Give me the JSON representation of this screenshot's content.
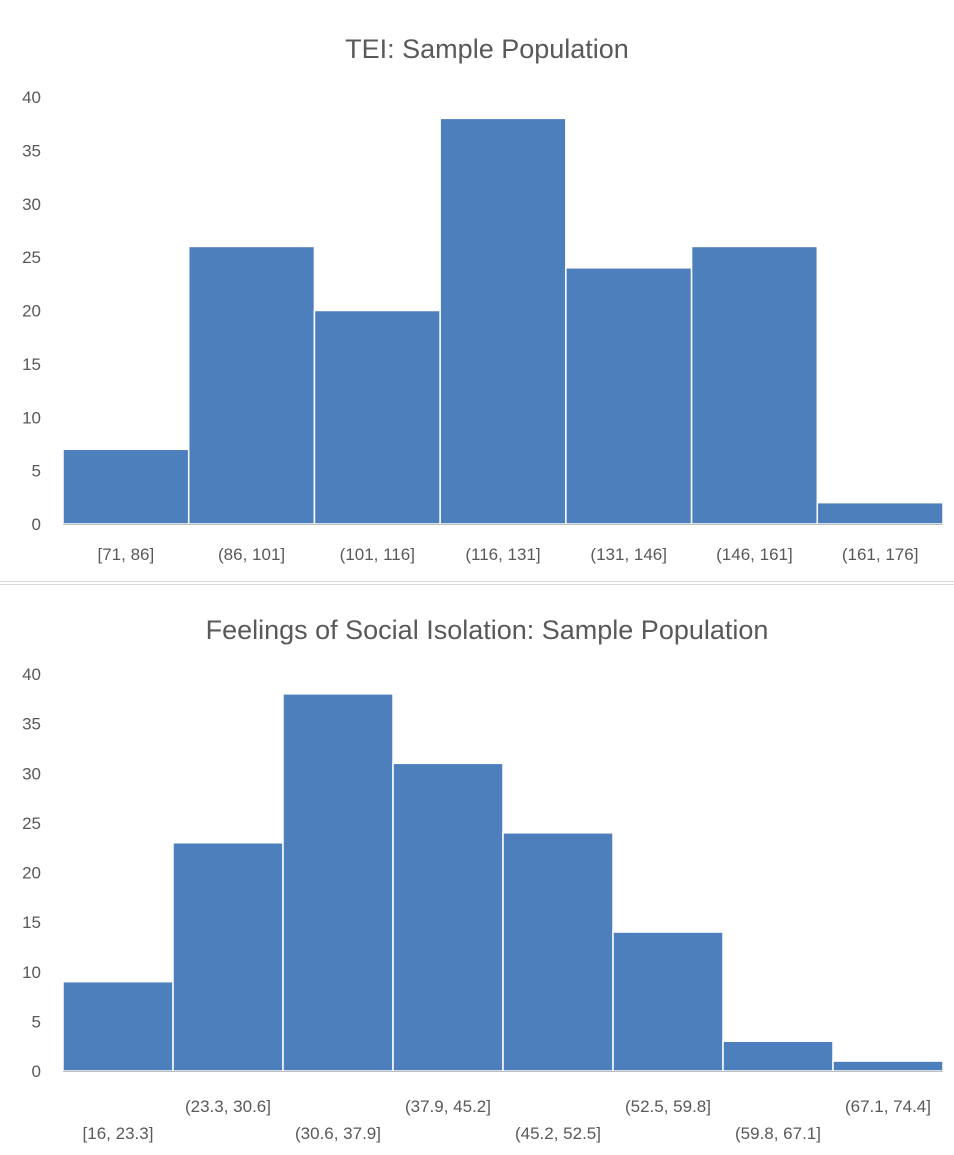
{
  "chart_data": [
    {
      "type": "bar",
      "title": "TEI: Sample Population",
      "categories": [
        "[71, 86]",
        "(86, 101]",
        "(101, 116]",
        "(116, 131]",
        "(131, 146]",
        "(146, 161]",
        "(161, 176]"
      ],
      "values": [
        7,
        26,
        20,
        38,
        24,
        26,
        2
      ],
      "ylim": [
        0,
        40
      ],
      "yticks": [
        "0",
        "5",
        "10",
        "15",
        "20",
        "25",
        "30",
        "35",
        "40"
      ],
      "grid": false,
      "bar_color": "#4e7fbd"
    },
    {
      "type": "bar",
      "title": "Feelings of Social Isolation: Sample Population",
      "categories": [
        "[16, 23.3]",
        "(23.3, 30.6]",
        "(30.6, 37.9]",
        "(37.9, 45.2]",
        "(45.2, 52.5]",
        "(52.5, 59.8]",
        "(59.8, 67.1]",
        "(67.1, 74.4]"
      ],
      "values": [
        9,
        23,
        38,
        31,
        24,
        14,
        3,
        1
      ],
      "ylim": [
        0,
        40
      ],
      "yticks": [
        "0",
        "5",
        "10",
        "15",
        "20",
        "25",
        "30",
        "35",
        "40"
      ],
      "grid": false,
      "bar_color": "#4e7fbd"
    }
  ]
}
